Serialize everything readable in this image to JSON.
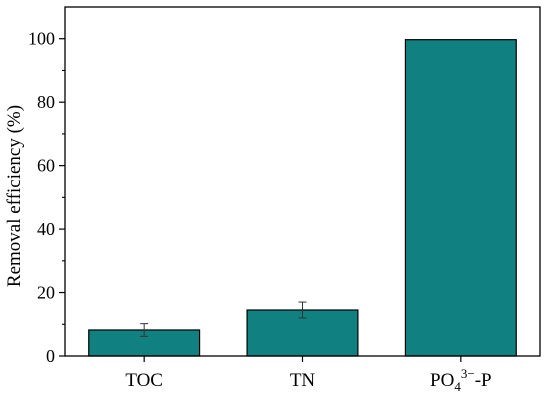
{
  "chart_data": {
    "type": "bar",
    "title": "",
    "xlabel": "",
    "ylabel": "Removal efficiency (%)",
    "ylim": [
      0,
      110
    ],
    "yticks": [
      0,
      20,
      40,
      60,
      80,
      100
    ],
    "categories": [
      "TOC",
      "TN",
      "PO4³⁻-P"
    ],
    "category_labels": [
      {
        "base": "TOC"
      },
      {
        "base": "TN"
      },
      {
        "base": "PO",
        "sub": "4",
        "sup": "3−",
        "suffix": "-P"
      }
    ],
    "values": [
      8.2,
      14.5,
      99.7
    ],
    "errors": [
      2.0,
      2.5,
      0
    ],
    "grid": false,
    "colors": {
      "bar_fill": "#118080",
      "bar_stroke": "#000000",
      "axis": "#000000",
      "error_bar": "#333333"
    }
  }
}
